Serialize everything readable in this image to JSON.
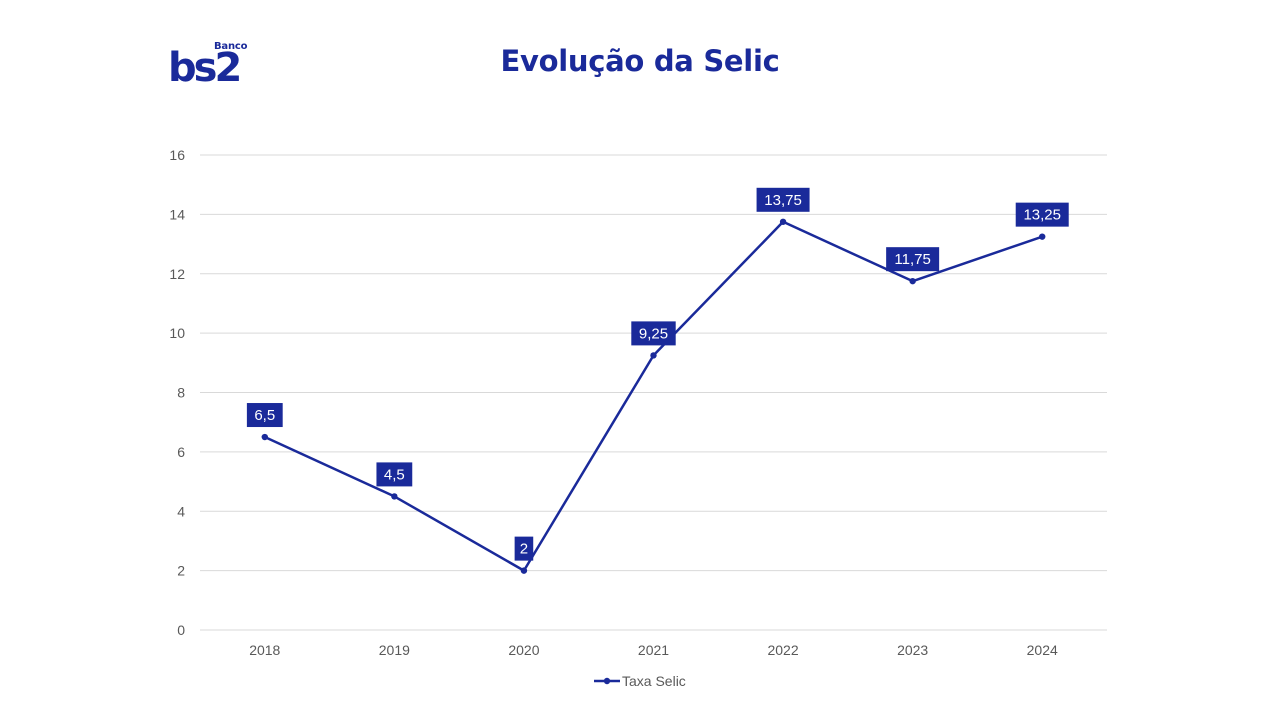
{
  "brand": {
    "small_text": "Banco",
    "mark_text": "bs2",
    "color": "#1a2a9a"
  },
  "page_title": "Evolução da Selic",
  "chart_data": {
    "type": "line",
    "title": "",
    "xlabel": "",
    "ylabel": "",
    "categories": [
      "2018",
      "2019",
      "2020",
      "2021",
      "2022",
      "2023",
      "2024"
    ],
    "series": [
      {
        "name": "Taxa Selic",
        "values": [
          6.5,
          4.5,
          2,
          9.25,
          13.75,
          11.75,
          13.25
        ],
        "labels": [
          "6,5",
          "4,5",
          "2",
          "9,25",
          "13,75",
          "11,75",
          "13,25"
        ],
        "color": "#1a2a9a"
      }
    ],
    "ylim": [
      0,
      16
    ],
    "yticks": [
      0,
      2,
      4,
      6,
      8,
      10,
      12,
      14,
      16
    ],
    "grid": true,
    "legend_position": "bottom"
  }
}
